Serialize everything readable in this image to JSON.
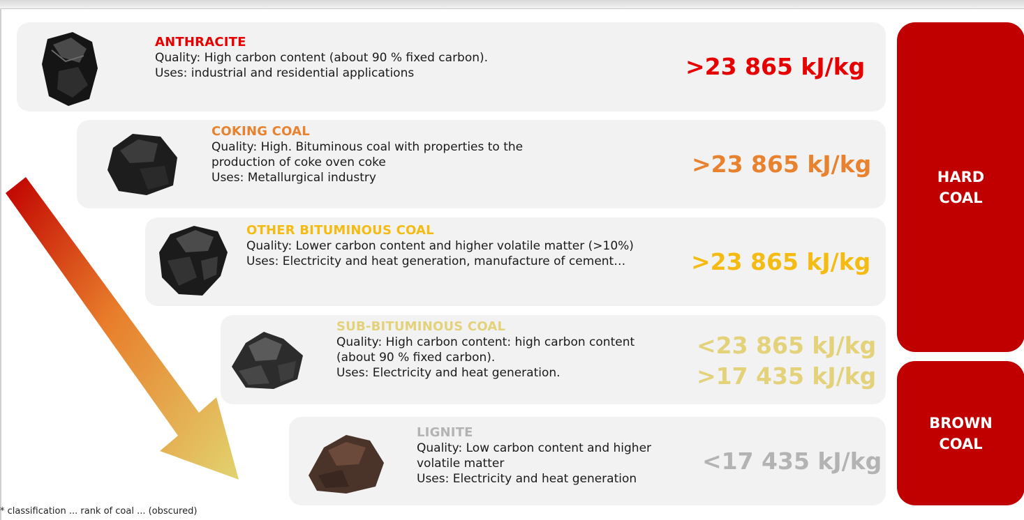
{
  "colors": {
    "anthracite": "#e60000",
    "coking": "#e8822e",
    "bituminous": "#f4bb12",
    "sub_bituminous": "#e3d27a",
    "lignite": "#b3b3b3",
    "group_bg": "#c00000",
    "card_bg": "#f2f2f2"
  },
  "coal_types": [
    {
      "name": "ANTHRACITE",
      "quality": "Quality: High carbon content (about 90 % fixed carbon).",
      "uses": "Uses: industrial and residential applications",
      "values": [
        ">23 865 kJ/kg"
      ]
    },
    {
      "name": "COKING COAL",
      "quality_line1": "Quality:  High. Bituminous coal with properties to the",
      "quality_line2": "production of coke oven coke",
      "uses": "Uses: Metallurgical industry",
      "values": [
        ">23 865 kJ/kg"
      ]
    },
    {
      "name": "OTHER BITUMINOUS COAL",
      "quality": "Quality: Lower carbon content and higher volatile matter (>10%)",
      "uses": "Uses: Electricity and heat generation, manufacture of cement…",
      "values": [
        ">23 865 kJ/kg"
      ]
    },
    {
      "name": "SUB-BITUMINOUS COAL",
      "quality_line1": "Quality: High carbon content: high carbon content",
      "quality_line2": "(about 90 % fixed carbon).",
      "uses": "Uses: Electricity and heat generation.",
      "values": [
        "<23 865 kJ/kg",
        ">17 435 kJ/kg"
      ]
    },
    {
      "name": "LIGNITE",
      "quality_line1": "Quality: Low carbon content and higher",
      "quality_line2": "volatile matter",
      "uses": "Uses: Electricity and heat generation",
      "values": [
        "<17 435 kJ/kg"
      ]
    }
  ],
  "groups": {
    "hard_coal": [
      "HARD",
      "COAL"
    ],
    "brown_coal": [
      "BROWN",
      "COAL"
    ]
  },
  "footnote": "* classification ... rank of coal ... (obscured)"
}
